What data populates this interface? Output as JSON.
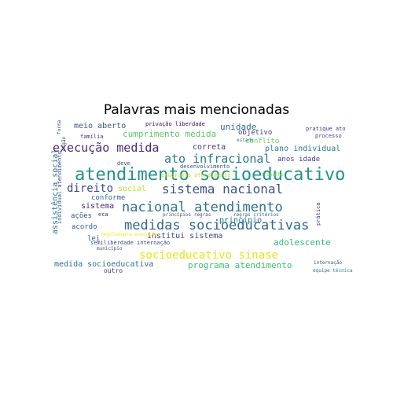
{
  "title": "Palavras mais mencionadas",
  "words": [
    {
      "text": "atendimento socioeducativo",
      "color": "#21918c"
    },
    {
      "text": "sistema nacional",
      "color": "#3b528b"
    },
    {
      "text": "nacional atendimento",
      "color": "#2c728e"
    },
    {
      "text": "medidas socioeducativas",
      "color": "#31688e"
    },
    {
      "text": "socioeducativo sinase",
      "color": "#e8e419"
    },
    {
      "text": "execução medida",
      "color": "#482878"
    },
    {
      "text": "ato infracional",
      "color": "#2a788e"
    },
    {
      "text": "direito",
      "color": "#3e4a89"
    },
    {
      "text": "adolescente",
      "color": "#35b779"
    },
    {
      "text": "cumprimento medida",
      "color": "#5ec962"
    },
    {
      "text": "programa atendimento",
      "color": "#3fbc73"
    },
    {
      "text": "institui sistema",
      "color": "#404688"
    },
    {
      "text": "medida socioeducativa",
      "color": "#2d708e"
    },
    {
      "text": "meio aberto",
      "color": "#365c8d"
    },
    {
      "text": "unidade",
      "color": "#2e6e8e"
    },
    {
      "text": "correta",
      "color": "#46337e"
    },
    {
      "text": "sistema",
      "color": "#472d7b"
    },
    {
      "text": "social",
      "color": "#c2df23"
    },
    {
      "text": "objetivo",
      "color": "#443a83"
    },
    {
      "text": "conflito",
      "color": "#6ccd5a"
    },
    {
      "text": "plano individual",
      "color": "#287c8e"
    },
    {
      "text": "anos idade",
      "color": "#433e85"
    },
    {
      "text": "princípio",
      "color": "#2a788e"
    },
    {
      "text": "conforme",
      "color": "#31688e"
    },
    {
      "text": "ações",
      "color": "#3b528b"
    },
    {
      "text": "acordo",
      "color": "#355f8d"
    },
    {
      "text": "lei",
      "color": "#34618d"
    },
    {
      "text": "outro",
      "color": "#482475"
    },
    {
      "text": "privação liberdade",
      "color": "#440154"
    },
    {
      "text": "pratique ato",
      "color": "#46327e"
    },
    {
      "text": "processo",
      "color": "#414487"
    },
    {
      "text": "estado",
      "color": "#2a788e"
    },
    {
      "text": "família",
      "color": "#472c7a"
    },
    {
      "text": "desenvolvimento",
      "color": "#3b528b"
    },
    {
      "text": "deve",
      "color": "#3d4e8a"
    },
    {
      "text": "programas atendimento",
      "color": "#c8e020"
    },
    {
      "text": "trabalho",
      "color": "#84d44b"
    },
    {
      "text": "eca",
      "color": "#481f70"
    },
    {
      "text": "semiliberdade internação",
      "color": "#3e4989"
    },
    {
      "text": "regulamenta execução",
      "color": "#fde725"
    },
    {
      "text": "município",
      "color": "#3b528b"
    },
    {
      "text": "princípios regras",
      "color": "#3e4a89"
    },
    {
      "text": "regras critérios",
      "color": "#355f8d"
    },
    {
      "text": "internação",
      "color": "#3b528b"
    },
    {
      "text": "equipe técnica",
      "color": "#2a788e"
    },
    {
      "text": "assistência social",
      "color": "#2c718e"
    },
    {
      "text": "individual atendimento",
      "color": "#3b528b"
    },
    {
      "text": "órgão",
      "color": "#3b528b"
    },
    {
      "text": "forma",
      "color": "#3b528b"
    },
    {
      "text": "prática",
      "color": "#443983"
    }
  ]
}
